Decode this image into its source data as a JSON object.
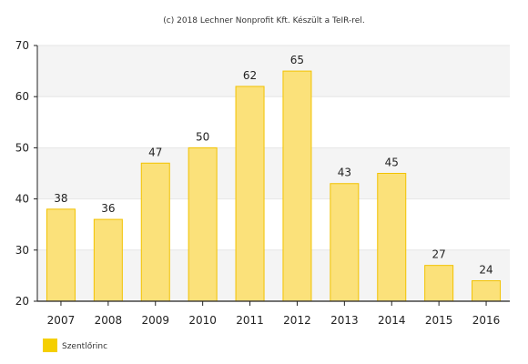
{
  "credit": "(c) 2018 Lechner Nonprofit Kft. Készült a TeIR-rel.",
  "chart_data": {
    "type": "bar",
    "categories": [
      "2007",
      "2008",
      "2009",
      "2010",
      "2011",
      "2012",
      "2013",
      "2014",
      "2015",
      "2016"
    ],
    "series": [
      {
        "name": "Szentlőrinc",
        "values": [
          38,
          36,
          47,
          50,
          62,
          65,
          43,
          45,
          27,
          24
        ],
        "color": "#fbe17a",
        "stroke": "#f2c200"
      }
    ],
    "ylim": [
      20,
      70
    ],
    "yticks": [
      20,
      30,
      40,
      50,
      60,
      70
    ],
    "grid": true,
    "band_colors": [
      "#f4f4f4",
      "#ffffff"
    ],
    "legend_position": "bottom-left",
    "legend_swatch_color": "#f5cf00",
    "data_labels": true
  }
}
